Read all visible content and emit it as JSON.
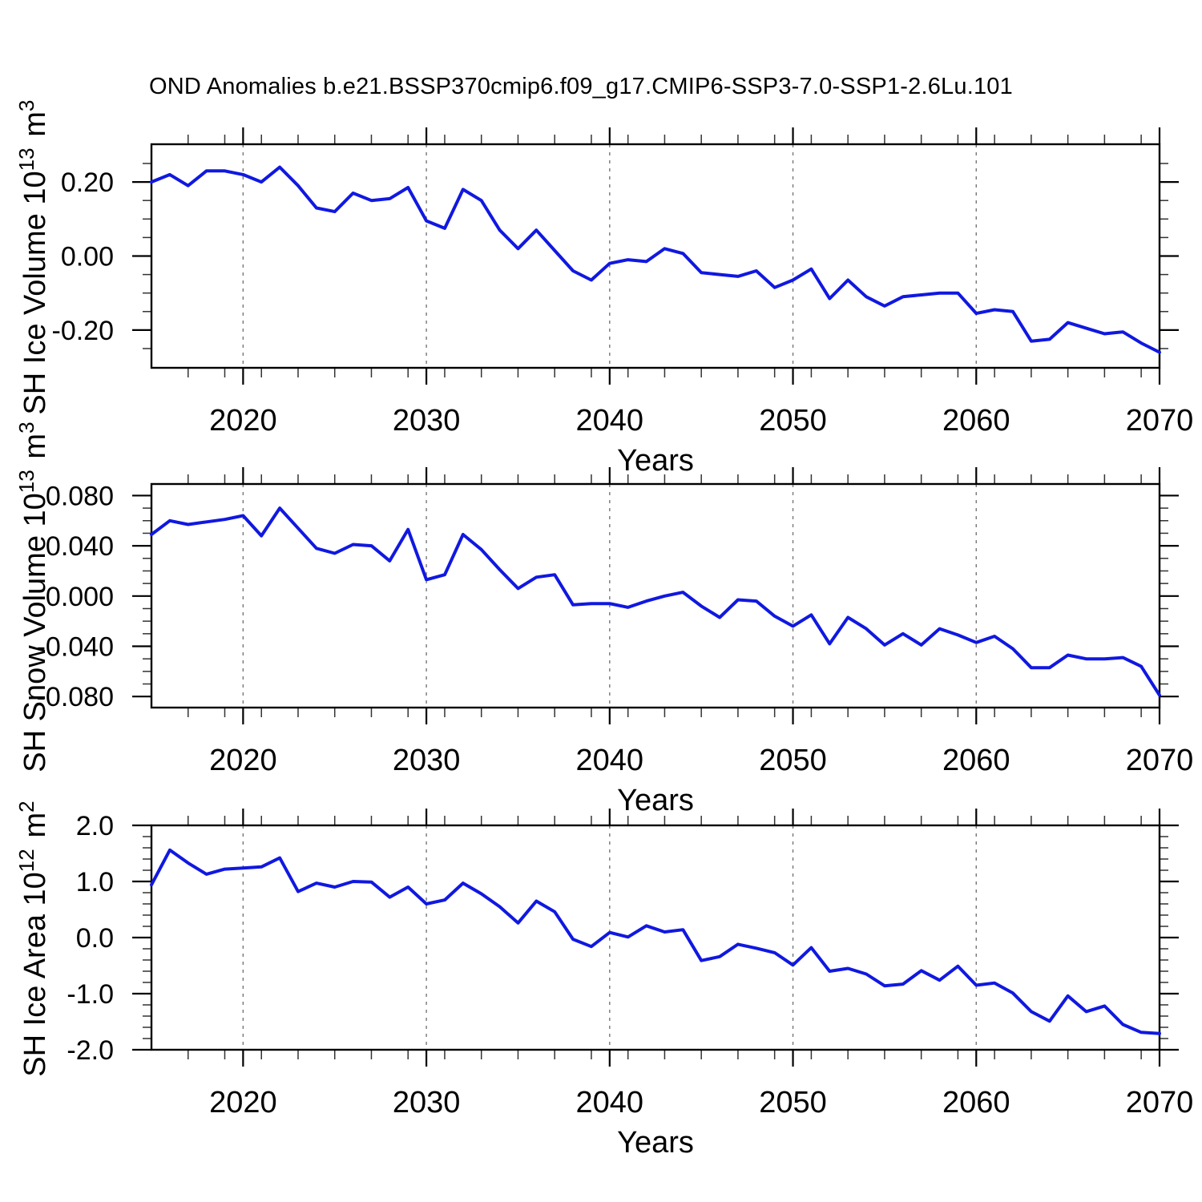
{
  "title": "OND Anomalies b.e21.BSSP370cmip6.f09_g17.CMIP6-SSP3-7.0-SSP1-2.6Lu.101",
  "xlabel": "Years",
  "colors": {
    "line": "#1018E0",
    "frame": "#000000",
    "gridline": "#777777",
    "minor_tick": "#333333",
    "background": "#ffffff"
  },
  "x_axis": {
    "start_year": 2015,
    "end_year": 2070,
    "major_ticks": [
      2020,
      2030,
      2040,
      2050,
      2060,
      2070
    ],
    "major_tick_labels": [
      "2020",
      "2030",
      "2040",
      "2050",
      "2060",
      "2070"
    ],
    "minor_tick_step": 2,
    "gridline_years": [
      2020,
      2030,
      2040,
      2050,
      2060
    ]
  },
  "years": [
    2015,
    2016,
    2017,
    2018,
    2019,
    2020,
    2021,
    2022,
    2023,
    2024,
    2025,
    2026,
    2027,
    2028,
    2029,
    2030,
    2031,
    2032,
    2033,
    2034,
    2035,
    2036,
    2037,
    2038,
    2039,
    2040,
    2041,
    2042,
    2043,
    2044,
    2045,
    2046,
    2047,
    2048,
    2049,
    2050,
    2051,
    2052,
    2053,
    2054,
    2055,
    2056,
    2057,
    2058,
    2059,
    2060,
    2061,
    2062,
    2063,
    2064,
    2065,
    2066,
    2067,
    2068,
    2069,
    2070
  ],
  "chart_data": [
    {
      "type": "line",
      "name": "sh-ice-volume",
      "ylabel_text": "SH Ice Volume 10^13 m^3",
      "ylabel_parts": [
        {
          "t": "SH Ice Volume 10"
        },
        {
          "t": "13",
          "sup": true
        },
        {
          "t": " m"
        },
        {
          "t": "3",
          "sup": true
        }
      ],
      "ylim": [
        -0.302,
        0.302
      ],
      "y_ticks": [
        {
          "v": 0.2,
          "label": "0.20"
        },
        {
          "v": 0.0,
          "label": "0.00"
        },
        {
          "v": -0.2,
          "label": "-0.20"
        }
      ],
      "y_minor_step": 0.05,
      "values": [
        0.2,
        0.22,
        0.19,
        0.23,
        0.23,
        0.22,
        0.2,
        0.24,
        0.19,
        0.13,
        0.12,
        0.17,
        0.15,
        0.155,
        0.185,
        0.095,
        0.075,
        0.18,
        0.15,
        0.07,
        0.02,
        0.07,
        0.015,
        -0.04,
        -0.065,
        -0.02,
        -0.01,
        -0.015,
        0.02,
        0.007,
        -0.045,
        -0.05,
        -0.055,
        -0.04,
        -0.085,
        -0.065,
        -0.035,
        -0.115,
        -0.065,
        -0.11,
        -0.135,
        -0.11,
        -0.105,
        -0.1,
        -0.1,
        -0.155,
        -0.145,
        -0.15,
        -0.23,
        -0.225,
        -0.18,
        -0.195,
        -0.21,
        -0.205,
        -0.235,
        -0.26
      ]
    },
    {
      "type": "line",
      "name": "sh-snow-volume",
      "ylabel_text": "SH Snow Volume 10^13 m^3",
      "ylabel_parts": [
        {
          "t": "SH Snow Volume 10"
        },
        {
          "t": "13",
          "sup": true
        },
        {
          "t": " m"
        },
        {
          "t": "3",
          "sup": true
        }
      ],
      "ylim": [
        -0.0888,
        0.0892
      ],
      "y_ticks": [
        {
          "v": 0.08,
          "label": "0.080"
        },
        {
          "v": 0.04,
          "label": "0.040"
        },
        {
          "v": 0.0,
          "label": "0.000"
        },
        {
          "v": -0.04,
          "label": "-0.040"
        },
        {
          "v": -0.08,
          "label": "-0.080"
        }
      ],
      "y_minor_step": 0.01,
      "values": [
        0.049,
        0.06,
        0.057,
        0.059,
        0.061,
        0.064,
        0.048,
        0.07,
        0.054,
        0.038,
        0.034,
        0.041,
        0.04,
        0.028,
        0.053,
        0.013,
        0.017,
        0.049,
        0.037,
        0.021,
        0.006,
        0.015,
        0.017,
        -0.007,
        -0.006,
        -0.006,
        -0.009,
        -0.004,
        0.0,
        0.003,
        -0.008,
        -0.017,
        -0.003,
        -0.004,
        -0.016,
        -0.024,
        -0.015,
        -0.038,
        -0.017,
        -0.026,
        -0.039,
        -0.03,
        -0.039,
        -0.026,
        -0.031,
        -0.037,
        -0.032,
        -0.042,
        -0.057,
        -0.057,
        -0.047,
        -0.05,
        -0.05,
        -0.049,
        -0.056,
        -0.079
      ]
    },
    {
      "type": "line",
      "name": "sh-ice-area",
      "ylabel_text": "SH Ice Area 10^12 m^2",
      "ylabel_parts": [
        {
          "t": "SH Ice Area 10"
        },
        {
          "t": "12",
          "sup": true
        },
        {
          "t": " m"
        },
        {
          "t": "2",
          "sup": true
        }
      ],
      "ylim": [
        -2.0,
        2.0
      ],
      "y_ticks": [
        {
          "v": 2.0,
          "label": "2.0"
        },
        {
          "v": 1.0,
          "label": "1.0"
        },
        {
          "v": 0.0,
          "label": "0.0"
        },
        {
          "v": -1.0,
          "label": "-1.0"
        },
        {
          "v": -2.0,
          "label": "-2.0"
        }
      ],
      "y_minor_step": 0.2,
      "values": [
        0.94,
        1.56,
        1.33,
        1.13,
        1.22,
        1.24,
        1.26,
        1.42,
        0.82,
        0.97,
        0.9,
        1.0,
        0.99,
        0.72,
        0.9,
        0.6,
        0.67,
        0.97,
        0.78,
        0.55,
        0.26,
        0.65,
        0.46,
        -0.03,
        -0.16,
        0.09,
        0.01,
        0.21,
        0.1,
        0.14,
        -0.41,
        -0.34,
        -0.12,
        -0.19,
        -0.27,
        -0.49,
        -0.18,
        -0.6,
        -0.55,
        -0.65,
        -0.86,
        -0.83,
        -0.59,
        -0.76,
        -0.51,
        -0.85,
        -0.81,
        -0.99,
        -1.32,
        -1.49,
        -1.04,
        -1.32,
        -1.22,
        -1.55,
        -1.69,
        -1.71
      ]
    }
  ]
}
